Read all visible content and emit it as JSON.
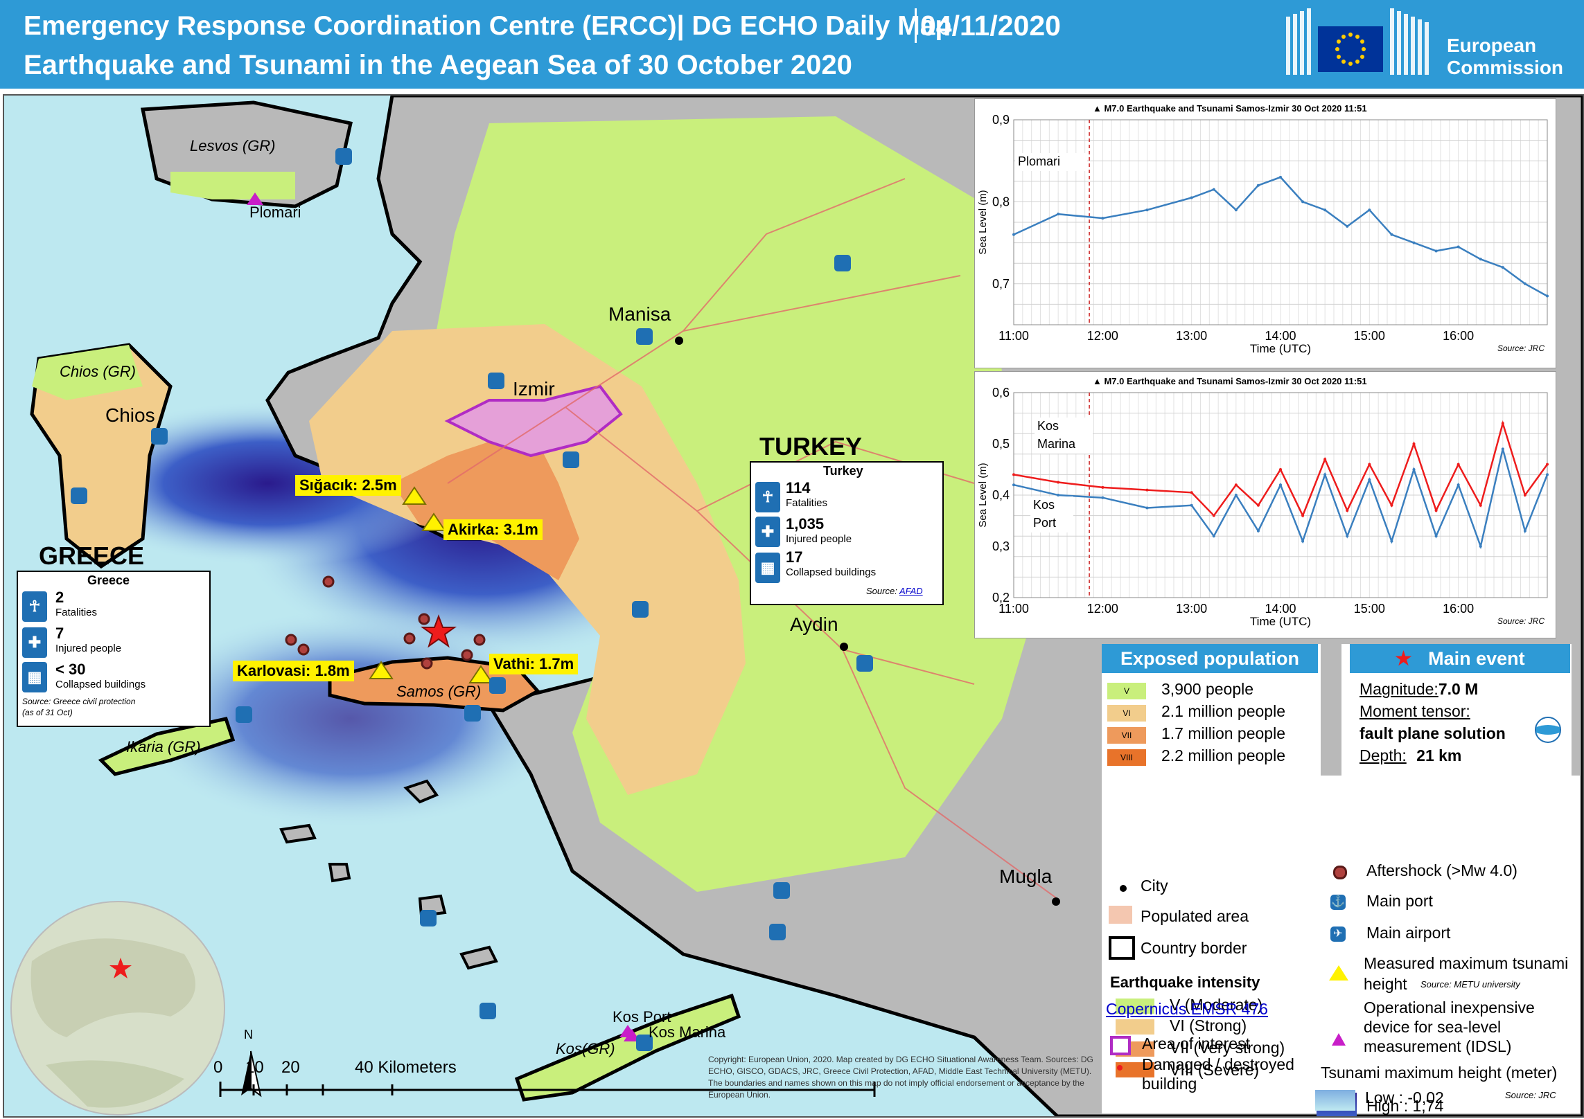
{
  "header": {
    "line1": "Emergency Response Coordination  Centre (ERCC)| DG ECHO Daily Map",
    "date": "04/11/2020",
    "line2": "Earthquake and Tsunami in the Aegean Sea of 30 October 2020",
    "logo_line1": "European",
    "logo_line2": "Commission"
  },
  "map": {
    "country_labels": {
      "turkey": "TURKEY",
      "greece": "GREECE"
    },
    "cities": [
      "Manisa",
      "Izmir",
      "Aydin",
      "Mugla",
      "Chios"
    ],
    "islands": [
      "Lesvos (GR)",
      "Chios (GR)",
      "Samos (GR)",
      "Ikaria (GR)",
      "Kos(GR)"
    ],
    "stations": [
      "Plomari",
      "Kos Port",
      "Kos Marina"
    ],
    "tsunami_heights": [
      "Sığacık:  2.5m",
      "Akirka:  3.1m",
      "Karlovasi:  1.8m",
      "Vathi:  1.7m"
    ],
    "scalebar": {
      "ticks": [
        "0",
        "10",
        "20",
        "40 Kilometers"
      ],
      "north": "N"
    },
    "copyright": "Copyright:  European  Union,  2020. Map created by DG ECHO Situational Awareness Team. Sources: DG ECHO, GISCO, GDACS, JRC, Greece Civil Protection, AFAD, Middle East Technical University (METU). The boundaries and names shown on this map do not imply official endorsement or acceptance by the European Union."
  },
  "turkey_panel": {
    "title": "Turkey",
    "fatalities": "114",
    "fatalities_label": "Fatalities",
    "injured": "1,035",
    "injured_label": "Injured people",
    "collapsed": "17",
    "collapsed_label": "Collapsed buildings",
    "source_prefix": "Source: ",
    "source_link": "AFAD"
  },
  "greece_panel": {
    "title": "Greece",
    "fatalities": "2",
    "fatalities_label": "Fatalities",
    "injured": "7",
    "injured_label": "Injured people",
    "collapsed": "< 30",
    "collapsed_label": "Collapsed buildings",
    "source": "Source: Greece civil protection",
    "source2": "(as of 31 Oct)"
  },
  "charts": {
    "top": {
      "title": "M7.0 Earthquake and Tsunami Samos-Izmir  30 Oct 2020 11:51",
      "series_label": "Plomari",
      "ylabel": "Sea Level (m)",
      "xlabel": "Time (UTC)",
      "yticks": [
        "0,9",
        "0,8",
        "0,7"
      ],
      "xticks": [
        "11:00",
        "12:00",
        "13:00",
        "14:00",
        "15:00",
        "16:00"
      ],
      "source": "Source: JRC"
    },
    "bottom": {
      "title": "M7.0 Earthquake and Tsunami Samos-Izmir  30 Oct 2020 11:51",
      "label_marina": "Kos Marina",
      "label_port": "Kos Port",
      "ylabel": "Sea Level (m)",
      "xlabel": "Time (UTC)",
      "yticks": [
        "0,6",
        "0,5",
        "0,4",
        "0,3",
        "0,2"
      ],
      "xticks": [
        "11:00",
        "12:00",
        "13:00",
        "14:00",
        "15:00",
        "16:00"
      ],
      "source": "Source: JRC"
    }
  },
  "chart_data": [
    {
      "type": "line",
      "title": "M7.0 Earthquake and Tsunami Samos-Izmir  30 Oct 2020 11:51",
      "xlabel": "Time (UTC)",
      "ylabel": "Sea Level (m)",
      "xlim": [
        "11:00",
        "17:00"
      ],
      "ylim": [
        0.65,
        0.9
      ],
      "event_time": "11:51",
      "series": [
        {
          "name": "Plomari",
          "color": "#3a7fbf",
          "x": [
            "11:00",
            "11:30",
            "12:00",
            "12:30",
            "13:00",
            "13:15",
            "13:30",
            "13:45",
            "14:00",
            "14:15",
            "14:30",
            "14:45",
            "15:00",
            "15:15",
            "15:30",
            "15:45",
            "16:00",
            "16:15",
            "16:30",
            "16:45",
            "17:00"
          ],
          "y": [
            0.76,
            0.785,
            0.78,
            0.79,
            0.805,
            0.815,
            0.79,
            0.82,
            0.83,
            0.8,
            0.79,
            0.77,
            0.79,
            0.76,
            0.75,
            0.74,
            0.745,
            0.73,
            0.72,
            0.7,
            0.685
          ]
        }
      ]
    },
    {
      "type": "line",
      "title": "M7.0 Earthquake and Tsunami Samos-Izmir  30 Oct 2020 11:51",
      "xlabel": "Time (UTC)",
      "ylabel": "Sea Level (m)",
      "xlim": [
        "11:00",
        "17:00"
      ],
      "ylim": [
        0.2,
        0.6
      ],
      "event_time": "11:51",
      "series": [
        {
          "name": "Kos Marina",
          "color": "#ee1c1c",
          "x": [
            "11:00",
            "11:30",
            "12:00",
            "12:30",
            "13:00",
            "13:15",
            "13:30",
            "13:45",
            "14:00",
            "14:15",
            "14:30",
            "14:45",
            "15:00",
            "15:15",
            "15:30",
            "15:45",
            "16:00",
            "16:15",
            "16:30",
            "16:45",
            "17:00"
          ],
          "y": [
            0.44,
            0.425,
            0.415,
            0.41,
            0.405,
            0.36,
            0.42,
            0.38,
            0.45,
            0.36,
            0.47,
            0.37,
            0.46,
            0.38,
            0.5,
            0.37,
            0.46,
            0.38,
            0.54,
            0.4,
            0.46
          ]
        },
        {
          "name": "Kos Port",
          "color": "#3a7fbf",
          "x": [
            "11:00",
            "11:30",
            "12:00",
            "12:30",
            "13:00",
            "13:15",
            "13:30",
            "13:45",
            "14:00",
            "14:15",
            "14:30",
            "14:45",
            "15:00",
            "15:15",
            "15:30",
            "15:45",
            "16:00",
            "16:15",
            "16:30",
            "16:45",
            "17:00"
          ],
          "y": [
            0.42,
            0.4,
            0.395,
            0.375,
            0.38,
            0.32,
            0.4,
            0.33,
            0.42,
            0.31,
            0.44,
            0.32,
            0.43,
            0.31,
            0.45,
            0.32,
            0.42,
            0.3,
            0.49,
            0.33,
            0.44
          ]
        }
      ]
    }
  ],
  "exposed_population": {
    "title": "Exposed population",
    "rows": [
      {
        "code": "V",
        "text": "3,900 people",
        "color": "#c9ef7c"
      },
      {
        "code": "VI",
        "text": "2.1 million people",
        "color": "#f2cd8c"
      },
      {
        "code": "VII",
        "text": "1.7 million people",
        "color": "#ee9a5c"
      },
      {
        "code": "VIII",
        "text": "2.2 million people",
        "color": "#e8732a"
      }
    ]
  },
  "main_event": {
    "title": "Main event",
    "magnitude_label": "Magnitude:",
    "magnitude_value": "7.0 M",
    "tensor_label": "Moment  tensor:",
    "tensor_value": "fault plane solution",
    "depth_label": "Depth:",
    "depth_value": "21 km"
  },
  "legend": {
    "city": "City",
    "populated": "Populated area",
    "border": "Country border",
    "intensity_title": "Earthquake intensity",
    "intensity": [
      {
        "text": "V (Moderate)",
        "color": "#c9ef7c"
      },
      {
        "text": "VI (Strong)",
        "color": "#f2cd8c"
      },
      {
        "text": "VII (Very strong)",
        "color": "#ee9a5c"
      },
      {
        "text": "VIII (Severe)",
        "color": "#e8732a"
      }
    ],
    "copernicus": "Copernicus EMSR 476",
    "aoi": "Area of interest",
    "damaged_1": "Damaged / destroyed",
    "damaged_2": "building",
    "aftershock": "Aftershock (>Mw 4.0)",
    "port": "Main port",
    "airport": "Main airport",
    "measured_1": "Measured maximum tsunami",
    "measured_2": "height",
    "measured_src": "Source: METU university",
    "idsl_1": "Operational inexpensive",
    "idsl_2": "device for sea-level",
    "idsl_3": "measurement (IDSL)",
    "tsunami_title": "Tsunami maximum height (meter)",
    "tsunami_src": "Source: JRC",
    "high": "High : 1,74",
    "low": "Low : -0,02"
  }
}
